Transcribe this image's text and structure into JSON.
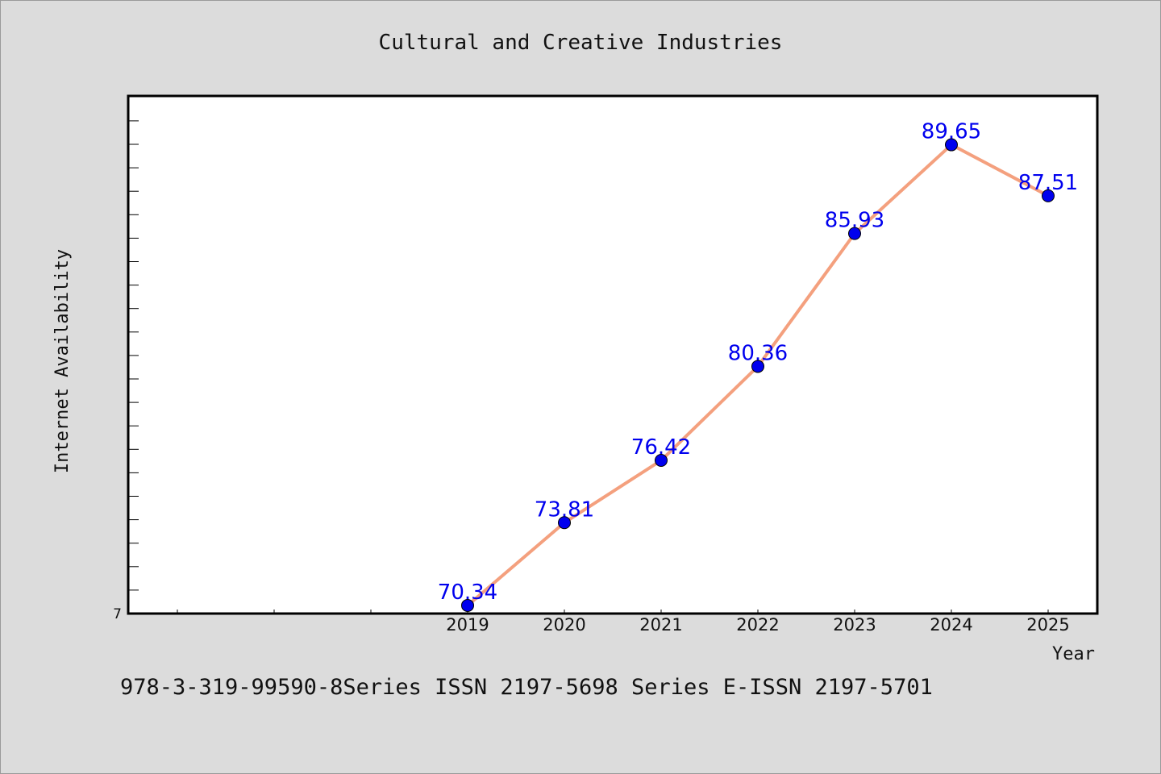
{
  "chart_data": {
    "type": "line",
    "title": "Cultural and Creative Industries",
    "xlabel": "Year",
    "ylabel": "Internet Availability",
    "categories": [
      "2019",
      "2020",
      "2021",
      "2022",
      "2023",
      "2024",
      "2025"
    ],
    "x_all_ticks_count": 10,
    "ylim": [
      70,
      92
    ],
    "y_tick_labels": [
      "7"
    ],
    "series": [
      {
        "name": "",
        "values": [
          70.34,
          73.81,
          76.42,
          80.36,
          85.93,
          89.65,
          87.51
        ],
        "data_labels": [
          "70.34",
          "73.81",
          "76.42",
          "80.36",
          "85.93",
          "89.65",
          "87.51"
        ]
      }
    ],
    "grid": false,
    "line_color": "#f4a07e",
    "marker_color": "#0000ee",
    "label_color": "#0000ee"
  },
  "footer_text": "978-3-319-99590-8Series ISSN 2197-5698 Series E-ISSN 2197-5701"
}
